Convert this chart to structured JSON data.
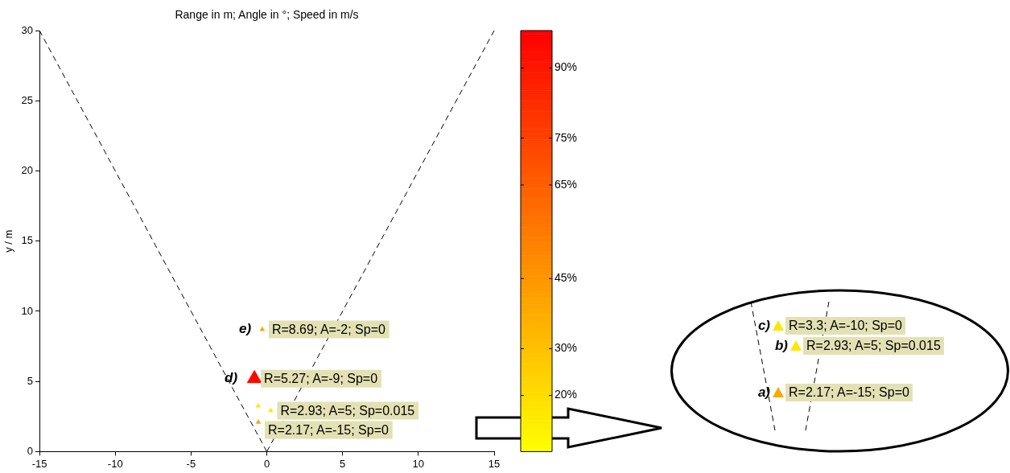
{
  "chart_data": [
    {
      "type": "scatter",
      "title": "Range in m; Angle in °; Speed in m/s",
      "ylabel": "y / m",
      "xlim": [
        -15,
        15
      ],
      "xticks": [
        -15,
        -10,
        -5,
        0,
        5,
        10,
        15
      ],
      "ylim": [
        0,
        30
      ],
      "yticks": [
        0,
        5,
        10,
        15,
        20,
        25,
        30
      ],
      "clim": [
        8,
        98
      ],
      "cticks": [
        {
          "value": 20,
          "label": "20%"
        },
        {
          "value": 30,
          "label": "30%"
        },
        {
          "value": 45,
          "label": "45%"
        },
        {
          "value": 65,
          "label": "65%"
        },
        {
          "value": 75,
          "label": "75%"
        },
        {
          "value": 90,
          "label": "90%"
        }
      ],
      "series": [
        {
          "type": "line",
          "x": [
            0,
            -15
          ],
          "values": [
            0,
            30
          ],
          "color": "#000000",
          "line_style": "dashed"
        },
        {
          "type": "line",
          "x": [
            0,
            15
          ],
          "values": [
            0,
            30
          ],
          "color": "#000000",
          "line_style": "dashed"
        },
        {
          "type": "bubble",
          "marker": "triangle",
          "x": [
            -0.56
          ],
          "values": [
            2.1
          ],
          "sizes": [
            0.12
          ],
          "cvalues": [
            40
          ]
        },
        {
          "type": "bubble",
          "marker": "triangle",
          "x": [
            0.26
          ],
          "values": [
            2.92
          ],
          "sizes": [
            0.12
          ],
          "cvalues": [
            17
          ]
        },
        {
          "type": "bubble",
          "marker": "triangle",
          "x": [
            -0.57
          ],
          "values": [
            3.25
          ],
          "sizes": [
            0.12
          ],
          "cvalues": [
            17
          ]
        },
        {
          "name": "d)",
          "type": "bubble",
          "marker": "triangle",
          "x": [
            -0.82
          ],
          "values": [
            5.2
          ],
          "sizes": [
            1
          ],
          "cvalues": [
            95
          ]
        },
        {
          "name": "e)",
          "type": "bubble",
          "marker": "triangle",
          "x": [
            -0.3
          ],
          "values": [
            8.7
          ],
          "sizes": [
            0.12
          ],
          "cvalues": [
            40
          ]
        }
      ],
      "annotations": [
        {
          "text": "R=2.17; A=-15; Sp=0",
          "x": -0.56,
          "y": 2.1
        },
        {
          "text": "R=2.93; A=5; Sp=0.015",
          "x": 0.26,
          "y": 2.92
        },
        {
          "text": "R=5.27; A=-9; Sp=0",
          "x": -0.82,
          "y": 5.2
        },
        {
          "text": "R=8.69; A=-2; Sp=0",
          "x": -0.3,
          "y": 8.7
        }
      ]
    },
    {
      "type": "other",
      "annotations": [
        "c)",
        "R=3.3; A=-10; Sp=0",
        "b)",
        "R=2.93; A=5; Sp=0.015",
        "a)",
        "R=2.17; A=-15; Sp=0"
      ]
    }
  ]
}
